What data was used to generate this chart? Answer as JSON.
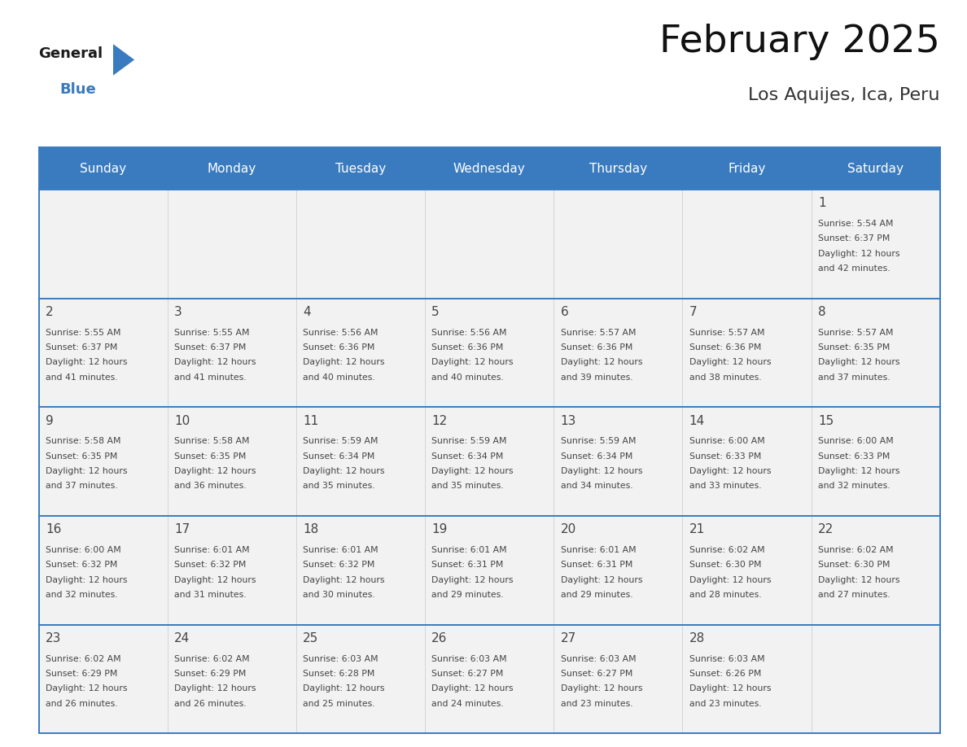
{
  "title": "February 2025",
  "subtitle": "Los Aquijes, Ica, Peru",
  "header_color": "#3a7bbf",
  "header_text_color": "#ffffff",
  "cell_bg_light": "#f2f2f2",
  "border_color": "#3a7bbf",
  "text_color": "#444444",
  "days_of_week": [
    "Sunday",
    "Monday",
    "Tuesday",
    "Wednesday",
    "Thursday",
    "Friday",
    "Saturday"
  ],
  "calendar_data": [
    [
      {
        "day": "",
        "sunrise": "",
        "sunset": "",
        "daylight_h": "",
        "daylight_m": ""
      },
      {
        "day": "",
        "sunrise": "",
        "sunset": "",
        "daylight_h": "",
        "daylight_m": ""
      },
      {
        "day": "",
        "sunrise": "",
        "sunset": "",
        "daylight_h": "",
        "daylight_m": ""
      },
      {
        "day": "",
        "sunrise": "",
        "sunset": "",
        "daylight_h": "",
        "daylight_m": ""
      },
      {
        "day": "",
        "sunrise": "",
        "sunset": "",
        "daylight_h": "",
        "daylight_m": ""
      },
      {
        "day": "",
        "sunrise": "",
        "sunset": "",
        "daylight_h": "",
        "daylight_m": ""
      },
      {
        "day": "1",
        "sunrise": "5:54 AM",
        "sunset": "6:37 PM",
        "daylight_h": "12 hours",
        "daylight_m": "and 42 minutes."
      }
    ],
    [
      {
        "day": "2",
        "sunrise": "5:55 AM",
        "sunset": "6:37 PM",
        "daylight_h": "12 hours",
        "daylight_m": "and 41 minutes."
      },
      {
        "day": "3",
        "sunrise": "5:55 AM",
        "sunset": "6:37 PM",
        "daylight_h": "12 hours",
        "daylight_m": "and 41 minutes."
      },
      {
        "day": "4",
        "sunrise": "5:56 AM",
        "sunset": "6:36 PM",
        "daylight_h": "12 hours",
        "daylight_m": "and 40 minutes."
      },
      {
        "day": "5",
        "sunrise": "5:56 AM",
        "sunset": "6:36 PM",
        "daylight_h": "12 hours",
        "daylight_m": "and 40 minutes."
      },
      {
        "day": "6",
        "sunrise": "5:57 AM",
        "sunset": "6:36 PM",
        "daylight_h": "12 hours",
        "daylight_m": "and 39 minutes."
      },
      {
        "day": "7",
        "sunrise": "5:57 AM",
        "sunset": "6:36 PM",
        "daylight_h": "12 hours",
        "daylight_m": "and 38 minutes."
      },
      {
        "day": "8",
        "sunrise": "5:57 AM",
        "sunset": "6:35 PM",
        "daylight_h": "12 hours",
        "daylight_m": "and 37 minutes."
      }
    ],
    [
      {
        "day": "9",
        "sunrise": "5:58 AM",
        "sunset": "6:35 PM",
        "daylight_h": "12 hours",
        "daylight_m": "and 37 minutes."
      },
      {
        "day": "10",
        "sunrise": "5:58 AM",
        "sunset": "6:35 PM",
        "daylight_h": "12 hours",
        "daylight_m": "and 36 minutes."
      },
      {
        "day": "11",
        "sunrise": "5:59 AM",
        "sunset": "6:34 PM",
        "daylight_h": "12 hours",
        "daylight_m": "and 35 minutes."
      },
      {
        "day": "12",
        "sunrise": "5:59 AM",
        "sunset": "6:34 PM",
        "daylight_h": "12 hours",
        "daylight_m": "and 35 minutes."
      },
      {
        "day": "13",
        "sunrise": "5:59 AM",
        "sunset": "6:34 PM",
        "daylight_h": "12 hours",
        "daylight_m": "and 34 minutes."
      },
      {
        "day": "14",
        "sunrise": "6:00 AM",
        "sunset": "6:33 PM",
        "daylight_h": "12 hours",
        "daylight_m": "and 33 minutes."
      },
      {
        "day": "15",
        "sunrise": "6:00 AM",
        "sunset": "6:33 PM",
        "daylight_h": "12 hours",
        "daylight_m": "and 32 minutes."
      }
    ],
    [
      {
        "day": "16",
        "sunrise": "6:00 AM",
        "sunset": "6:32 PM",
        "daylight_h": "12 hours",
        "daylight_m": "and 32 minutes."
      },
      {
        "day": "17",
        "sunrise": "6:01 AM",
        "sunset": "6:32 PM",
        "daylight_h": "12 hours",
        "daylight_m": "and 31 minutes."
      },
      {
        "day": "18",
        "sunrise": "6:01 AM",
        "sunset": "6:32 PM",
        "daylight_h": "12 hours",
        "daylight_m": "and 30 minutes."
      },
      {
        "day": "19",
        "sunrise": "6:01 AM",
        "sunset": "6:31 PM",
        "daylight_h": "12 hours",
        "daylight_m": "and 29 minutes."
      },
      {
        "day": "20",
        "sunrise": "6:01 AM",
        "sunset": "6:31 PM",
        "daylight_h": "12 hours",
        "daylight_m": "and 29 minutes."
      },
      {
        "day": "21",
        "sunrise": "6:02 AM",
        "sunset": "6:30 PM",
        "daylight_h": "12 hours",
        "daylight_m": "and 28 minutes."
      },
      {
        "day": "22",
        "sunrise": "6:02 AM",
        "sunset": "6:30 PM",
        "daylight_h": "12 hours",
        "daylight_m": "and 27 minutes."
      }
    ],
    [
      {
        "day": "23",
        "sunrise": "6:02 AM",
        "sunset": "6:29 PM",
        "daylight_h": "12 hours",
        "daylight_m": "and 26 minutes."
      },
      {
        "day": "24",
        "sunrise": "6:02 AM",
        "sunset": "6:29 PM",
        "daylight_h": "12 hours",
        "daylight_m": "and 26 minutes."
      },
      {
        "day": "25",
        "sunrise": "6:03 AM",
        "sunset": "6:28 PM",
        "daylight_h": "12 hours",
        "daylight_m": "and 25 minutes."
      },
      {
        "day": "26",
        "sunrise": "6:03 AM",
        "sunset": "6:27 PM",
        "daylight_h": "12 hours",
        "daylight_m": "and 24 minutes."
      },
      {
        "day": "27",
        "sunrise": "6:03 AM",
        "sunset": "6:27 PM",
        "daylight_h": "12 hours",
        "daylight_m": "and 23 minutes."
      },
      {
        "day": "28",
        "sunrise": "6:03 AM",
        "sunset": "6:26 PM",
        "daylight_h": "12 hours",
        "daylight_m": "and 23 minutes."
      },
      {
        "day": "",
        "sunrise": "",
        "sunset": "",
        "daylight_h": "",
        "daylight_m": ""
      }
    ]
  ]
}
